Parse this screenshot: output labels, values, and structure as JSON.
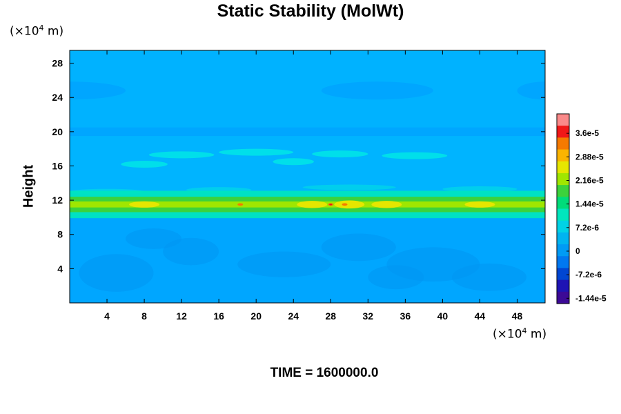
{
  "chart_data": {
    "type": "heatmap",
    "title": "Static Stability (MolWt)",
    "ylabel": "Height",
    "x_unit_prefix": "(×10",
    "x_unit_exp": "4",
    "x_unit_suffix": " m)",
    "y_unit_prefix": "(×10",
    "y_unit_exp": "4",
    "y_unit_suffix": " m)",
    "xlim": [
      0,
      51
    ],
    "ylim": [
      0,
      29.5
    ],
    "x_ticks": [
      4,
      8,
      12,
      16,
      20,
      24,
      28,
      32,
      36,
      40,
      44,
      48
    ],
    "y_ticks": [
      4,
      8,
      12,
      16,
      20,
      24,
      28
    ],
    "colorbar": {
      "labels": [
        "3.6e-5",
        "2.88e-5",
        "2.16e-5",
        "1.44e-5",
        "7.2e-6",
        "0",
        "-7.2e-6",
        "-1.44e-5"
      ],
      "colors": [
        "#fa8a8a",
        "#f01818",
        "#f57a00",
        "#fab400",
        "#e6e600",
        "#a0e600",
        "#3cd23c",
        "#00dc7a",
        "#00e6be",
        "#00d2e6",
        "#00b4f0",
        "#009bf5",
        "#0078f0",
        "#0046d2",
        "#1e14b4",
        "#3c0a96"
      ]
    },
    "field": {
      "background": "#00a6ff",
      "upper_layer": "#00b2ff",
      "upper_layer_base": 20.5,
      "high_band_center": 11.5,
      "high_band_peak": 3.6e-05,
      "secondary_band_center": 17.5
    },
    "footer": "TIME = 1600000.0"
  }
}
